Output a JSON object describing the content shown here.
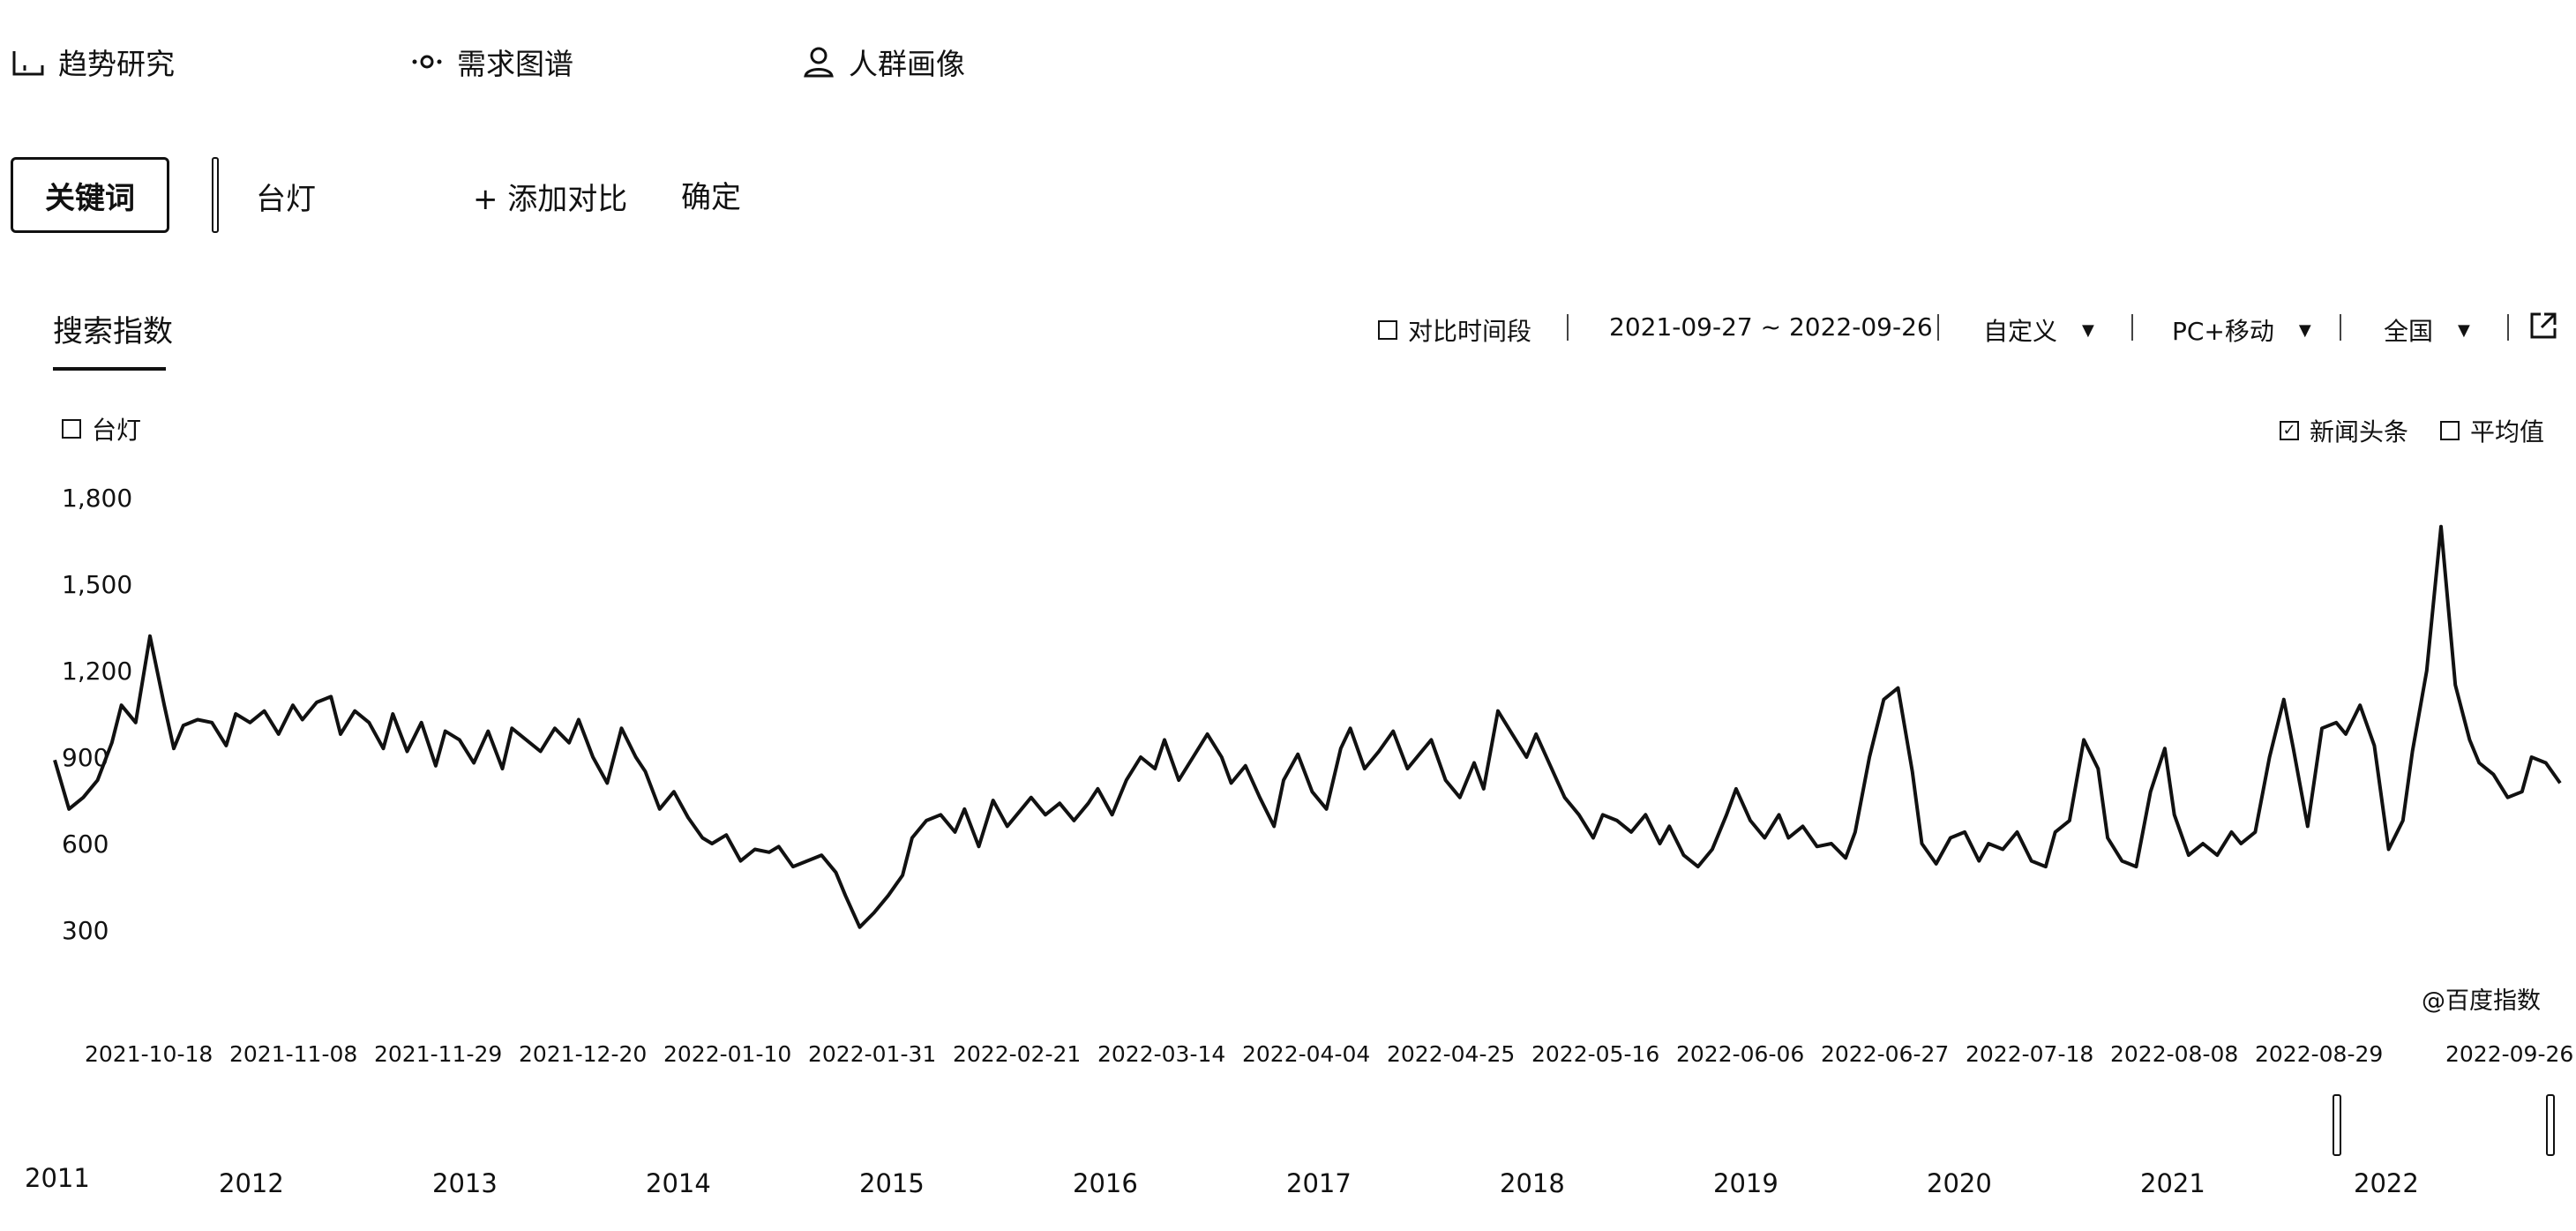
{
  "nav": {
    "items": [
      {
        "label": "趋势研究",
        "icon": "trend-icon"
      },
      {
        "label": "需求图谱",
        "icon": "graph-icon"
      },
      {
        "label": "人群画像",
        "icon": "user-icon"
      }
    ]
  },
  "keyword_bar": {
    "button_label": "关键词",
    "keyword": "台灯",
    "add_label": "+ 添加对比",
    "confirm_label": "确定"
  },
  "panel": {
    "tab_title": "搜索指数",
    "compare_period_label": "对比时间段",
    "date_range": "2021-09-27 ~ 2022-09-26",
    "period_select": "自定义",
    "device_select": "PC+移动",
    "region_select": "全国",
    "export_icon": "external-link-icon"
  },
  "legend": {
    "label": "台灯",
    "checked": false
  },
  "options": {
    "news_label": "新闻头条",
    "news_checked": true,
    "avg_label": "平均值",
    "avg_checked": false
  },
  "watermark": "@百度指数",
  "timeline": {
    "years": [
      "2011",
      "2012",
      "2013",
      "2014",
      "2015",
      "2016",
      "2017",
      "2018",
      "2019",
      "2020",
      "2021",
      "2022"
    ]
  },
  "chart_data": {
    "type": "line",
    "title": "",
    "xlabel": "",
    "ylabel": "",
    "y_ticks": [
      "1,800",
      "1,500",
      "1,200",
      "900",
      "600",
      "300"
    ],
    "x_ticks": [
      "2021-10-18",
      "2021-11-08",
      "2021-11-29",
      "2021-12-20",
      "2022-01-10",
      "2022-01-31",
      "2022-02-21",
      "2022-03-14",
      "2022-04-04",
      "2022-04-25",
      "2022-05-16",
      "2022-06-06",
      "2022-06-27",
      "2022-07-18",
      "2022-08-08",
      "2022-08-29",
      "2022-09-26"
    ],
    "ylim": [
      0,
      1800
    ],
    "x_start": "2021-09-27",
    "x_end": "2022-09-26",
    "grid": false,
    "series": [
      {
        "name": "台灯",
        "values": [
          [
            0,
            890
          ],
          [
            3,
            720
          ],
          [
            6,
            760
          ],
          [
            9,
            820
          ],
          [
            12,
            950
          ],
          [
            14,
            1080
          ],
          [
            17,
            1020
          ],
          [
            20,
            1320
          ],
          [
            23,
            1080
          ],
          [
            25,
            930
          ],
          [
            27,
            1010
          ],
          [
            30,
            1030
          ],
          [
            33,
            1020
          ],
          [
            36,
            940
          ],
          [
            38,
            1050
          ],
          [
            41,
            1020
          ],
          [
            44,
            1060
          ],
          [
            47,
            980
          ],
          [
            50,
            1080
          ],
          [
            52,
            1030
          ],
          [
            55,
            1090
          ],
          [
            58,
            1110
          ],
          [
            60,
            980
          ],
          [
            63,
            1060
          ],
          [
            66,
            1020
          ],
          [
            69,
            930
          ],
          [
            71,
            1050
          ],
          [
            74,
            920
          ],
          [
            77,
            1020
          ],
          [
            80,
            870
          ],
          [
            82,
            990
          ],
          [
            85,
            960
          ],
          [
            88,
            880
          ],
          [
            91,
            990
          ],
          [
            94,
            860
          ],
          [
            96,
            1000
          ],
          [
            99,
            960
          ],
          [
            102,
            920
          ],
          [
            105,
            1000
          ],
          [
            108,
            950
          ],
          [
            110,
            1030
          ],
          [
            113,
            900
          ],
          [
            116,
            810
          ],
          [
            119,
            1000
          ],
          [
            122,
            900
          ],
          [
            124,
            850
          ],
          [
            127,
            720
          ],
          [
            130,
            780
          ],
          [
            133,
            690
          ],
          [
            136,
            620
          ],
          [
            138,
            600
          ],
          [
            141,
            630
          ],
          [
            144,
            540
          ],
          [
            147,
            580
          ],
          [
            150,
            570
          ],
          [
            152,
            590
          ],
          [
            155,
            520
          ],
          [
            158,
            540
          ],
          [
            161,
            560
          ],
          [
            164,
            500
          ],
          [
            166,
            420
          ],
          [
            169,
            310
          ],
          [
            172,
            360
          ],
          [
            175,
            420
          ],
          [
            178,
            490
          ],
          [
            180,
            620
          ],
          [
            183,
            680
          ],
          [
            186,
            700
          ],
          [
            189,
            640
          ],
          [
            191,
            720
          ],
          [
            194,
            590
          ],
          [
            197,
            750
          ],
          [
            200,
            660
          ],
          [
            203,
            720
          ],
          [
            205,
            760
          ],
          [
            208,
            700
          ],
          [
            211,
            740
          ],
          [
            214,
            680
          ],
          [
            217,
            740
          ],
          [
            219,
            790
          ],
          [
            222,
            700
          ],
          [
            225,
            820
          ],
          [
            228,
            900
          ],
          [
            231,
            860
          ],
          [
            233,
            960
          ],
          [
            236,
            820
          ],
          [
            239,
            900
          ],
          [
            242,
            980
          ],
          [
            245,
            900
          ],
          [
            247,
            810
          ],
          [
            250,
            870
          ],
          [
            253,
            760
          ],
          [
            256,
            660
          ],
          [
            258,
            820
          ],
          [
            261,
            910
          ],
          [
            264,
            780
          ],
          [
            267,
            720
          ],
          [
            270,
            930
          ],
          [
            272,
            1000
          ],
          [
            275,
            860
          ],
          [
            278,
            920
          ],
          [
            281,
            990
          ],
          [
            284,
            860
          ],
          [
            286,
            900
          ],
          [
            289,
            960
          ],
          [
            292,
            820
          ],
          [
            295,
            760
          ],
          [
            298,
            880
          ],
          [
            300,
            790
          ],
          [
            303,
            1060
          ],
          [
            306,
            980
          ],
          [
            309,
            900
          ],
          [
            311,
            980
          ],
          [
            314,
            870
          ],
          [
            317,
            760
          ],
          [
            320,
            700
          ],
          [
            323,
            620
          ],
          [
            325,
            700
          ],
          [
            328,
            680
          ],
          [
            331,
            640
          ],
          [
            334,
            700
          ],
          [
            337,
            600
          ],
          [
            339,
            660
          ],
          [
            342,
            560
          ],
          [
            345,
            520
          ],
          [
            348,
            580
          ],
          [
            351,
            700
          ],
          [
            353,
            790
          ],
          [
            356,
            680
          ],
          [
            359,
            620
          ],
          [
            362,
            700
          ],
          [
            364,
            620
          ],
          [
            367,
            660
          ],
          [
            370,
            590
          ],
          [
            373,
            600
          ],
          [
            376,
            550
          ],
          [
            378,
            640
          ],
          [
            381,
            900
          ],
          [
            384,
            1100
          ],
          [
            387,
            1140
          ],
          [
            390,
            850
          ],
          [
            392,
            600
          ],
          [
            395,
            530
          ],
          [
            398,
            620
          ],
          [
            401,
            640
          ],
          [
            404,
            540
          ],
          [
            406,
            600
          ],
          [
            409,
            580
          ],
          [
            412,
            640
          ],
          [
            415,
            540
          ],
          [
            418,
            520
          ],
          [
            420,
            640
          ],
          [
            423,
            680
          ],
          [
            426,
            960
          ],
          [
            429,
            860
          ],
          [
            431,
            620
          ],
          [
            434,
            540
          ],
          [
            437,
            520
          ],
          [
            440,
            780
          ],
          [
            443,
            930
          ],
          [
            445,
            700
          ],
          [
            448,
            560
          ],
          [
            451,
            600
          ],
          [
            454,
            560
          ],
          [
            457,
            640
          ],
          [
            459,
            600
          ],
          [
            462,
            640
          ],
          [
            465,
            900
          ],
          [
            468,
            1100
          ],
          [
            470,
            930
          ],
          [
            473,
            660
          ],
          [
            476,
            1000
          ],
          [
            479,
            1020
          ],
          [
            481,
            980
          ],
          [
            484,
            1080
          ],
          [
            487,
            940
          ],
          [
            490,
            580
          ],
          [
            493,
            680
          ],
          [
            495,
            920
          ],
          [
            498,
            1200
          ],
          [
            501,
            1700
          ],
          [
            504,
            1150
          ],
          [
            507,
            960
          ],
          [
            509,
            880
          ],
          [
            512,
            840
          ],
          [
            515,
            760
          ],
          [
            518,
            780
          ],
          [
            520,
            900
          ],
          [
            523,
            880
          ],
          [
            526,
            810
          ]
        ]
      }
    ]
  }
}
